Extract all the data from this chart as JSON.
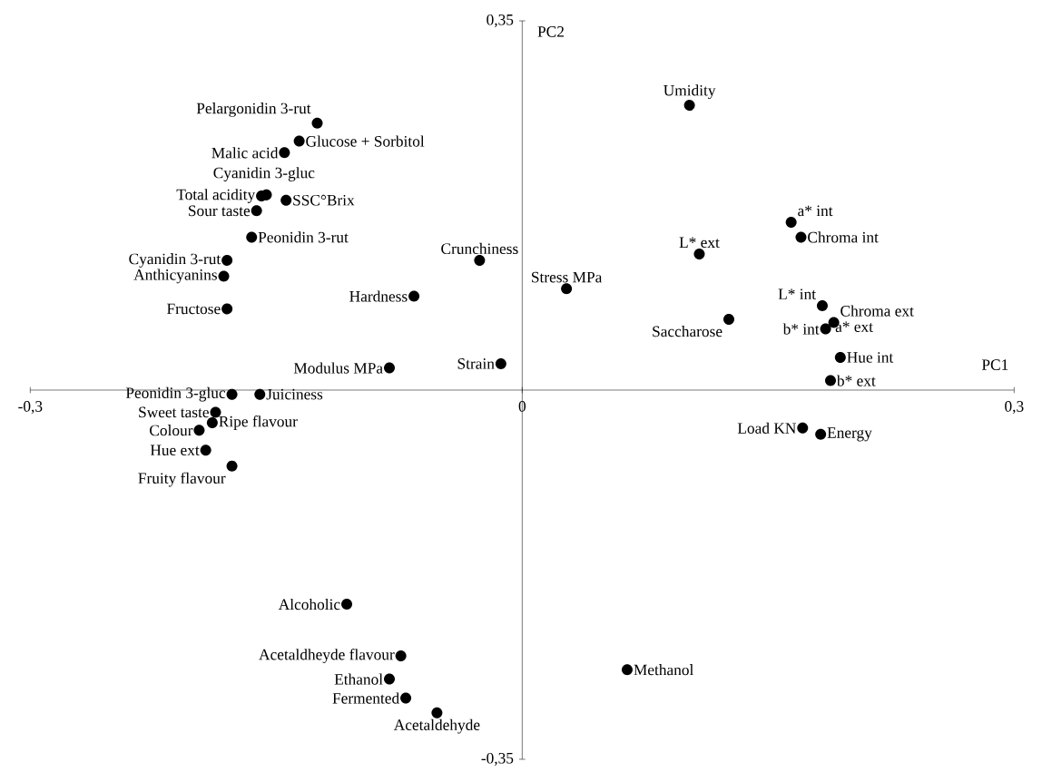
{
  "chart_data": {
    "type": "scatter",
    "xlabel": "PC1",
    "ylabel": "PC2",
    "xlim": [
      -0.3,
      0.3
    ],
    "ylim": [
      -0.35,
      0.35
    ],
    "xticks": [
      {
        "value": -0.3,
        "label": "-0,3"
      },
      {
        "value": 0,
        "label": "0"
      },
      {
        "value": 0.3,
        "label": "0,3"
      }
    ],
    "yticks": [
      {
        "value": -0.35,
        "label": "-0,35"
      },
      {
        "value": 0.35,
        "label": "0,35"
      }
    ],
    "marker": "circle",
    "series": [
      {
        "color": "#000000",
        "x": [
          0.102,
          -0.125,
          -0.136,
          -0.145,
          -0.156,
          -0.159,
          -0.144,
          -0.162,
          -0.165,
          -0.18,
          -0.182,
          -0.18,
          -0.026,
          -0.066,
          0.027,
          0.108,
          0.164,
          0.17,
          0.126,
          0.183,
          0.19,
          0.187,
          0.185,
          0.194,
          0.188,
          -0.081,
          -0.013,
          -0.177,
          -0.16,
          -0.187,
          -0.189,
          -0.197,
          -0.193,
          -0.177,
          0.171,
          0.182,
          -0.107,
          -0.074,
          -0.081,
          -0.071,
          -0.052,
          0.064
        ],
        "values": [
          0.27,
          0.253,
          0.236,
          0.225,
          0.185,
          0.184,
          0.18,
          0.17,
          0.145,
          0.123,
          0.108,
          0.077,
          0.123,
          0.089,
          0.096,
          0.129,
          0.159,
          0.145,
          0.067,
          0.08,
          0.064,
          null,
          0.058,
          0.031,
          0.009,
          0.021,
          0.025,
          -0.004,
          -0.004,
          -0.021,
          -0.031,
          -0.038,
          -0.057,
          -0.072,
          -0.036,
          -0.042,
          -0.203,
          -0.252,
          -0.274,
          -0.292,
          -0.306,
          -0.265
        ]
      }
    ],
    "annotations": [
      {
        "text": "Umidity",
        "x": 0.102,
        "y": 0.27
      },
      {
        "text": "Pelargonidin 3-rut",
        "x": -0.125,
        "y": 0.253
      },
      {
        "text": "Glucose + Sorbitol",
        "x": -0.136,
        "y": 0.236
      },
      {
        "text": "Malic acid",
        "x": -0.145,
        "y": 0.225
      },
      {
        "text": "Cyanidin 3-gluc",
        "x": -0.156,
        "y": 0.185
      },
      {
        "text": "Total acidity",
        "x": -0.159,
        "y": 0.184
      },
      {
        "text": "SSC°Brix",
        "x": -0.144,
        "y": 0.18
      },
      {
        "text": "Sour taste",
        "x": -0.162,
        "y": 0.17
      },
      {
        "text": "Peonidin 3-rut",
        "x": -0.165,
        "y": 0.145
      },
      {
        "text": "Cyanidin 3-rut",
        "x": -0.18,
        "y": 0.123
      },
      {
        "text": "Anthicyanins",
        "x": -0.182,
        "y": 0.108
      },
      {
        "text": "Fructose",
        "x": -0.18,
        "y": 0.077
      },
      {
        "text": "Crunchiness",
        "x": -0.026,
        "y": 0.123
      },
      {
        "text": "Hardness",
        "x": -0.066,
        "y": 0.089
      },
      {
        "text": "Stress MPa",
        "x": 0.027,
        "y": 0.096
      },
      {
        "text": "L* ext",
        "x": 0.108,
        "y": 0.129
      },
      {
        "text": "a* int",
        "x": 0.164,
        "y": 0.159
      },
      {
        "text": "Chroma int",
        "x": 0.17,
        "y": 0.145
      },
      {
        "text": "Saccharose",
        "x": 0.126,
        "y": 0.067
      },
      {
        "text": "L* int",
        "x": 0.183,
        "y": 0.08
      },
      {
        "text": "Chroma ext",
        "x": 0.19,
        "y": 0.064
      },
      {
        "text": "a* ext",
        "x": 0.187,
        "y": 0.06
      },
      {
        "text": "b* int",
        "x": 0.185,
        "y": 0.058
      },
      {
        "text": "Hue int",
        "x": 0.194,
        "y": 0.031
      },
      {
        "text": "b* ext",
        "x": 0.188,
        "y": 0.009
      },
      {
        "text": "Modulus MPa",
        "x": -0.081,
        "y": 0.021
      },
      {
        "text": "Strain",
        "x": -0.013,
        "y": 0.025
      },
      {
        "text": "Peonidin 3-gluc",
        "x": -0.177,
        "y": -0.004
      },
      {
        "text": "Juiciness",
        "x": -0.16,
        "y": -0.004
      },
      {
        "text": "Sweet taste",
        "x": -0.187,
        "y": -0.021
      },
      {
        "text": "Ripe flavour",
        "x": -0.189,
        "y": -0.031
      },
      {
        "text": "Colour",
        "x": -0.197,
        "y": -0.038
      },
      {
        "text": "Hue ext",
        "x": -0.193,
        "y": -0.057
      },
      {
        "text": "Fruity flavour",
        "x": -0.177,
        "y": -0.072
      },
      {
        "text": "Load KN",
        "x": 0.171,
        "y": -0.036
      },
      {
        "text": "Energy",
        "x": 0.182,
        "y": -0.042
      },
      {
        "text": "Alcoholic",
        "x": -0.107,
        "y": -0.203
      },
      {
        "text": "Acetaldheyde flavour",
        "x": -0.074,
        "y": -0.252
      },
      {
        "text": "Ethanol",
        "x": -0.081,
        "y": -0.274
      },
      {
        "text": "Fermented",
        "x": -0.071,
        "y": -0.292
      },
      {
        "text": "Acetaldehyde",
        "x": -0.052,
        "y": -0.306
      },
      {
        "text": "Methanol",
        "x": 0.064,
        "y": -0.265
      }
    ]
  }
}
